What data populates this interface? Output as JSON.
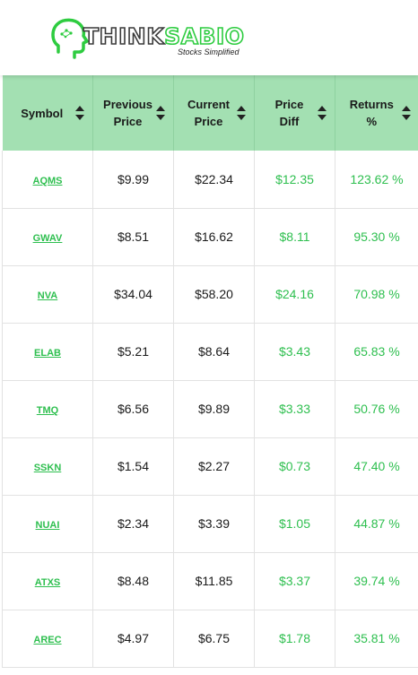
{
  "brand": {
    "name_part1": "THINK",
    "name_part2": "SABIO",
    "tagline": "Stocks Simplified",
    "accent_color": "#2ecc40",
    "header_bg": "#a3e0b2"
  },
  "table": {
    "columns": [
      {
        "label_line1": "Symbol",
        "label_line2": "",
        "sort_icon": "sort-icon"
      },
      {
        "label_line1": "Previous",
        "label_line2": "Price",
        "sort_icon": "sort-icon"
      },
      {
        "label_line1": "Current",
        "label_line2": "Price",
        "sort_icon": "sort-icon"
      },
      {
        "label_line1": "Price",
        "label_line2": "Diff",
        "sort_icon": "sort-icon"
      },
      {
        "label_line1": "Returns",
        "label_line2": "%",
        "sort_icon": "sort-icon"
      }
    ],
    "rows": [
      {
        "symbol": "AQMS",
        "prev": "$9.99",
        "curr": "$22.34",
        "diff": "$12.35",
        "ret": "123.62 %"
      },
      {
        "symbol": "GWAV",
        "prev": "$8.51",
        "curr": "$16.62",
        "diff": "$8.11",
        "ret": "95.30 %"
      },
      {
        "symbol": "NVA",
        "prev": "$34.04",
        "curr": "$58.20",
        "diff": "$24.16",
        "ret": "70.98 %"
      },
      {
        "symbol": "ELAB",
        "prev": "$5.21",
        "curr": "$8.64",
        "diff": "$3.43",
        "ret": "65.83 %"
      },
      {
        "symbol": "TMQ",
        "prev": "$6.56",
        "curr": "$9.89",
        "diff": "$3.33",
        "ret": "50.76 %"
      },
      {
        "symbol": "SSKN",
        "prev": "$1.54",
        "curr": "$2.27",
        "diff": "$0.73",
        "ret": "47.40 %"
      },
      {
        "symbol": "NUAI",
        "prev": "$2.34",
        "curr": "$3.39",
        "diff": "$1.05",
        "ret": "44.87 %"
      },
      {
        "symbol": "ATXS",
        "prev": "$8.48",
        "curr": "$11.85",
        "diff": "$3.37",
        "ret": "39.74 %"
      },
      {
        "symbol": "AREC",
        "prev": "$4.97",
        "curr": "$6.75",
        "diff": "$1.78",
        "ret": "35.81 %"
      }
    ]
  }
}
